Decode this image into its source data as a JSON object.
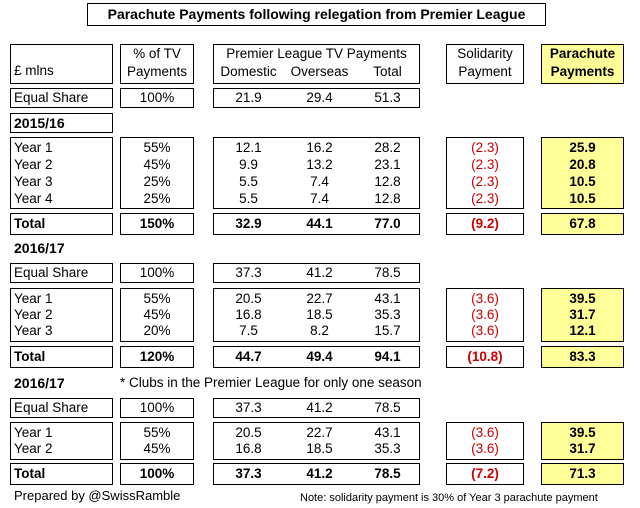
{
  "title": "Parachute Payments following relegation from Premier League",
  "header": {
    "unit": "£ mlns",
    "pct_line1": "% of TV",
    "pct_line2": "Payments",
    "group": "Premier League TV Payments",
    "domestic": "Domestic",
    "overseas": "Overseas",
    "total": "Total",
    "sol_line1": "Solidarity",
    "sol_line2": "Payment",
    "para_line1": "Parachute",
    "para_line2": "Payments"
  },
  "equal_share_top": {
    "label": "Equal Share",
    "pct": "100%",
    "dom": "21.9",
    "ovs": "29.4",
    "tot": "51.3"
  },
  "section1": {
    "heading": "2015/16",
    "rows": [
      {
        "label": "Year 1",
        "pct": "55%",
        "dom": "12.1",
        "ovs": "16.2",
        "tot": "28.2",
        "sol": "(2.3)",
        "para": "25.9"
      },
      {
        "label": "Year 2",
        "pct": "45%",
        "dom": "9.9",
        "ovs": "13.2",
        "tot": "23.1",
        "sol": "(2.3)",
        "para": "20.8"
      },
      {
        "label": "Year 3",
        "pct": "25%",
        "dom": "5.5",
        "ovs": "7.4",
        "tot": "12.8",
        "sol": "(2.3)",
        "para": "10.5"
      },
      {
        "label": "Year 4",
        "pct": "25%",
        "dom": "5.5",
        "ovs": "7.4",
        "tot": "12.8",
        "sol": "(2.3)",
        "para": "10.5"
      }
    ],
    "total": {
      "label": "Total",
      "pct": "150%",
      "dom": "32.9",
      "ovs": "44.1",
      "tot": "77.0",
      "sol": "(9.2)",
      "para": "67.8"
    }
  },
  "section2": {
    "heading": "2016/17",
    "equal_share": {
      "label": "Equal Share",
      "pct": "100%",
      "dom": "37.3",
      "ovs": "41.2",
      "tot": "78.5"
    },
    "rows": [
      {
        "label": "Year 1",
        "pct": "55%",
        "dom": "20.5",
        "ovs": "22.7",
        "tot": "43.1",
        "sol": "(3.6)",
        "para": "39.5"
      },
      {
        "label": "Year 2",
        "pct": "45%",
        "dom": "16.8",
        "ovs": "18.5",
        "tot": "35.3",
        "sol": "(3.6)",
        "para": "31.7"
      },
      {
        "label": "Year 3",
        "pct": "20%",
        "dom": "7.5",
        "ovs": "8.2",
        "tot": "15.7",
        "sol": "(3.6)",
        "para": "12.1"
      }
    ],
    "total": {
      "label": "Total",
      "pct": "120%",
      "dom": "44.7",
      "ovs": "49.4",
      "tot": "94.1",
      "sol": "(10.8)",
      "para": "83.3"
    }
  },
  "section3": {
    "heading": "2016/17",
    "note": "* Clubs in the Premier League for only one season",
    "equal_share": {
      "label": "Equal Share",
      "pct": "100%",
      "dom": "37.3",
      "ovs": "41.2",
      "tot": "78.5"
    },
    "rows": [
      {
        "label": "Year 1",
        "pct": "55%",
        "dom": "20.5",
        "ovs": "22.7",
        "tot": "43.1",
        "sol": "(3.6)",
        "para": "39.5"
      },
      {
        "label": "Year 2",
        "pct": "45%",
        "dom": "16.8",
        "ovs": "18.5",
        "tot": "35.3",
        "sol": "(3.6)",
        "para": "31.7"
      }
    ],
    "total": {
      "label": "Total",
      "pct": "100%",
      "dom": "37.3",
      "ovs": "41.2",
      "tot": "78.5",
      "sol": "(7.2)",
      "para": "71.3"
    }
  },
  "footer": {
    "credit": "Prepared by @SwissRamble",
    "note": "Note: solidarity payment is 30% of Year 3 parachute payment"
  },
  "colors": {
    "parachute_fill": "#ffff99",
    "solidarity_text": "#cc0000"
  }
}
